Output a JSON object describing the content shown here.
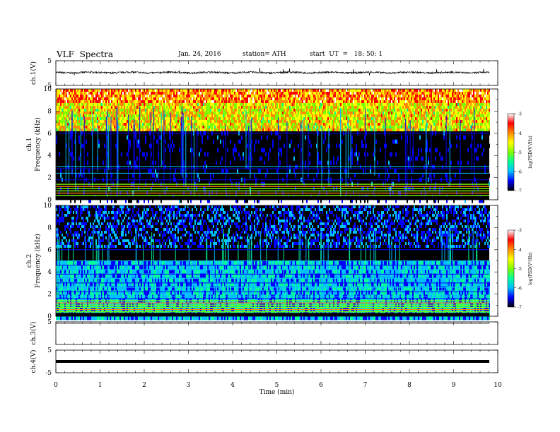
{
  "header": {
    "title": "VLF  Spectra",
    "date": "Jan. 24, 2016",
    "station": "station= ATH",
    "start": "start  UT  =   18: 50: 1"
  },
  "colorscale": {
    "stops": [
      "#000000",
      "#0000ff",
      "#00bfff",
      "#00ff9a",
      "#7fff00",
      "#ffff00",
      "#ff8c00",
      "#ff0000",
      "#ffffff"
    ],
    "label": "log(PSD(V²/Hz)",
    "ticks": [
      "-3",
      "-4",
      "-5",
      "-6",
      "-7"
    ]
  },
  "chart_data": [
    {
      "type": "line",
      "panel": "ch1-waveform",
      "ylabel": "ch.1(V)",
      "ylim": [
        -5,
        5
      ],
      "yticks": [
        "5",
        "-5"
      ],
      "xlim": [
        0,
        10
      ],
      "description_values": {
        "baseline_V": 0.2,
        "spike_max_V": 2.0,
        "spike_min_V": -1.5
      }
    },
    {
      "type": "heatmap",
      "panel": "ch1-spectrogram",
      "ylabel_top": "ch.1",
      "ylabel": "Frequency  (kHz)",
      "ylim": [
        0,
        10
      ],
      "yticks": [
        "0",
        "2",
        "4",
        "6",
        "8",
        "10"
      ],
      "xlim": [
        0,
        9.8
      ],
      "bands": [
        {
          "from": 6.4,
          "to": 10.0,
          "logpsd": -4.5
        },
        {
          "from": 0.0,
          "to": 6.2,
          "logpsd": -6.8
        }
      ],
      "lines_kHz": [
        6.0,
        3.0,
        2.8,
        2.4,
        1.8,
        1.4,
        1.2,
        1.0,
        0.8,
        0.6,
        0.4,
        0.2
      ]
    },
    {
      "type": "heatmap",
      "panel": "ch2-spectrogram",
      "ylabel_top": "ch.2",
      "ylabel": "Frequency  (kHz)",
      "ylim": [
        0,
        10
      ],
      "yticks": [
        "0",
        "2",
        "4",
        "6",
        "8",
        "10"
      ],
      "xlim": [
        0,
        9.8
      ],
      "bands": [
        {
          "from": 6.2,
          "to": 10.0,
          "logpsd": -6.7
        },
        {
          "from": 0.0,
          "to": 5.0,
          "logpsd": -6.0
        }
      ],
      "lines_kHz": [
        6.0,
        5.0,
        4.6,
        4.2,
        3.8,
        3.4,
        3.0,
        2.6,
        2.2,
        1.8,
        1.6,
        1.4,
        1.2,
        1.0,
        0.8,
        0.6,
        0.4,
        0.2
      ]
    },
    {
      "type": "line",
      "panel": "ch3-waveform",
      "ylabel": "ch.3(V)",
      "ylim": [
        -5,
        5
      ],
      "yticks": [
        "5"
      ],
      "xlim": [
        0,
        10
      ],
      "description_values": {
        "baseline_V": 5.0
      }
    },
    {
      "type": "line",
      "panel": "ch4-waveform",
      "ylabel": "ch.4(V)",
      "ylim": [
        -5,
        5
      ],
      "yticks": [
        "5",
        "-5"
      ],
      "xlim": [
        0,
        10
      ],
      "description_values": {
        "baseline_V": 0.0
      }
    }
  ],
  "xaxis": {
    "label": "Time  (min)",
    "ticks": [
      "0",
      "1",
      "2",
      "3",
      "4",
      "5",
      "6",
      "7",
      "8",
      "9",
      "10"
    ]
  }
}
